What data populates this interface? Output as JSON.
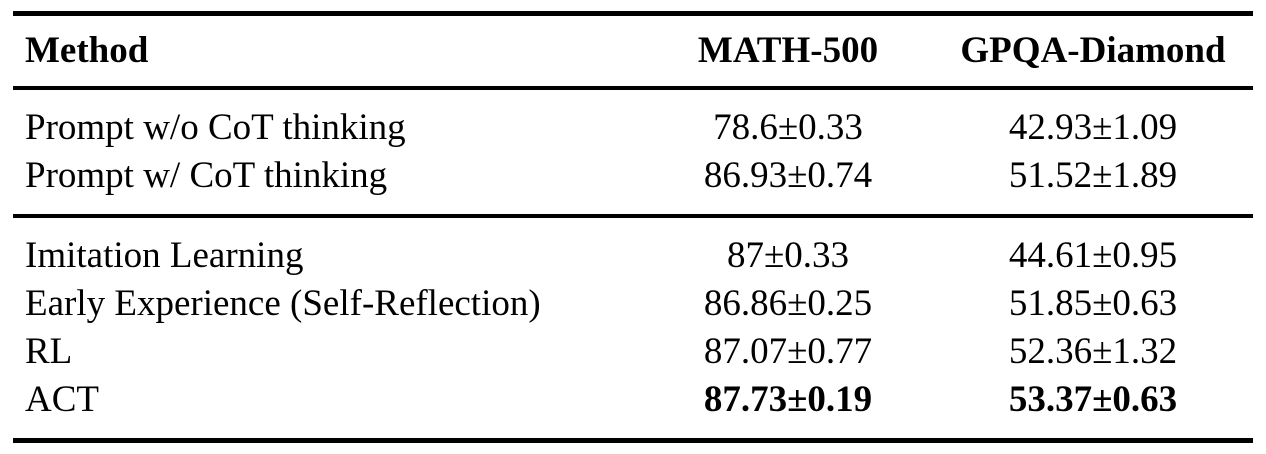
{
  "table": {
    "columns": [
      {
        "key": "method",
        "label": "Method"
      },
      {
        "key": "math500",
        "label": "MATH-500"
      },
      {
        "key": "gpqa",
        "label": "GPQA-Diamond"
      }
    ],
    "sections": [
      {
        "name": "prompting-baselines",
        "rows": [
          {
            "method": "Prompt w/o CoT thinking",
            "math500": "78.6±0.33",
            "gpqa": "42.93±1.09",
            "bold_values": false
          },
          {
            "method": "Prompt w/ CoT thinking",
            "math500": "86.93±0.74",
            "gpqa": "51.52±1.89",
            "bold_values": false
          }
        ]
      },
      {
        "name": "training-methods",
        "rows": [
          {
            "method": "Imitation Learning",
            "math500": "87±0.33",
            "gpqa": "44.61±0.95",
            "bold_values": false
          },
          {
            "method": "Early Experience (Self-Reflection)",
            "math500": "86.86±0.25",
            "gpqa": "51.85±0.63",
            "bold_values": false
          },
          {
            "method": "RL",
            "math500": "87.07±0.77",
            "gpqa": "52.36±1.32",
            "bold_values": false
          },
          {
            "method": "ACT",
            "math500": "87.73±0.19",
            "gpqa": "53.37±0.63",
            "bold_values": true
          }
        ]
      }
    ],
    "colors": {
      "text": "#000000",
      "rule": "#000000",
      "background": "#ffffff"
    }
  }
}
